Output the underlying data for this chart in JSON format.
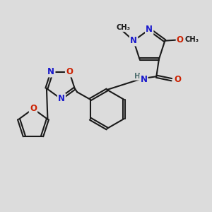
{
  "bg_color": "#dcdcdc",
  "bond_color": "#1a1a1a",
  "bond_width": 1.5,
  "dbl_sep": 0.055,
  "atom_colors": {
    "N": "#1a1acc",
    "O": "#cc2000",
    "H": "#507070",
    "C": "#1a1a1a"
  },
  "fs": 8.5,
  "fs_small": 7.2
}
